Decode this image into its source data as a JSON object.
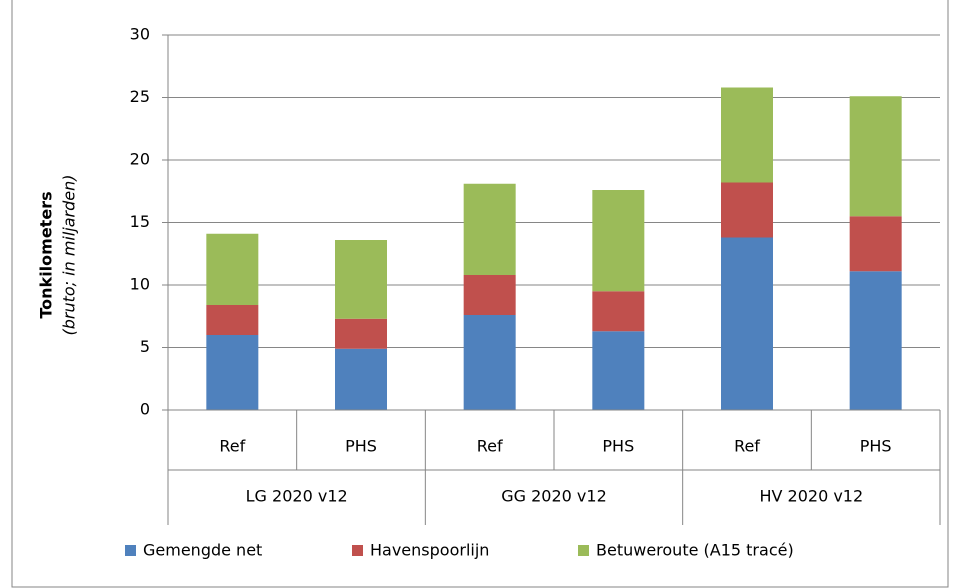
{
  "chart_data": {
    "type": "stacked_bar",
    "ylabel": "Tonkilometers",
    "ylabel_sub": "(bruto; in miljarden)",
    "categories": [
      "Ref",
      "PHS",
      "Ref",
      "PHS",
      "Ref",
      "PHS"
    ],
    "groups": [
      "LG 2020 v12",
      "GG 2020 v12",
      "HV 2020 v12"
    ],
    "series": [
      {
        "name": "Gemengde net",
        "color": "#4f81bd",
        "values": [
          6.0,
          4.9,
          7.6,
          6.3,
          13.8,
          11.1
        ]
      },
      {
        "name": "Havenspoorlijn",
        "color": "#c0504d",
        "values": [
          2.4,
          2.4,
          3.2,
          3.2,
          4.4,
          4.4
        ]
      },
      {
        "name": "Betuweroute (A15 tracé)",
        "color": "#9bbb59",
        "values": [
          5.7,
          6.3,
          7.3,
          8.1,
          7.6,
          9.6
        ]
      }
    ],
    "ylim": [
      0,
      30
    ],
    "yticks": [
      0,
      5,
      10,
      15,
      20,
      25,
      30
    ],
    "grid": true,
    "legend": "bottom"
  }
}
